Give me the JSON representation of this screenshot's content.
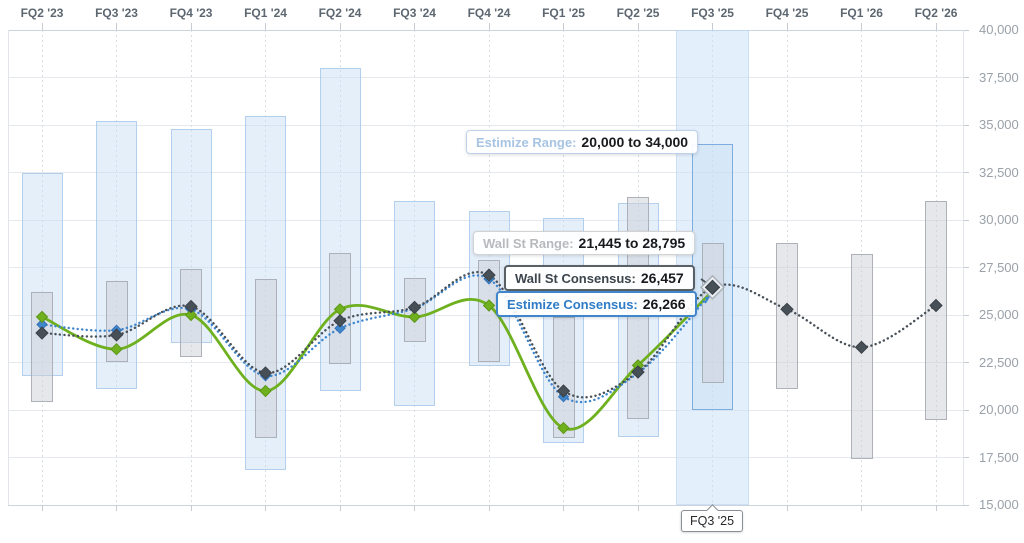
{
  "chart_data": {
    "type": "bar",
    "variant": "floating range bars with dotted consensus line overlays (estimates chart)",
    "title": "",
    "categories": [
      "FQ2 '23",
      "FQ3 '23",
      "FQ4 '23",
      "FQ1 '24",
      "FQ2 '24",
      "FQ3 '24",
      "FQ4 '24",
      "FQ1 '25",
      "FQ2 '25",
      "FQ3 '25",
      "FQ4 '25",
      "FQ1 '26",
      "FQ2 '26"
    ],
    "x_axis_position": "top",
    "y_axis": {
      "side": "right",
      "min": 15000,
      "max": 40000,
      "step": 2500,
      "tick_labels": [
        "40,000",
        "37,500",
        "35,000",
        "32,500",
        "30,000",
        "27,500",
        "25,000",
        "22,500",
        "20,000",
        "17,500",
        "15,000"
      ]
    },
    "grid": true,
    "legend": false,
    "selected": {
      "index": 9,
      "label": "FQ3 '25"
    },
    "range_series": [
      {
        "key": "estimize_range",
        "name": "Estimize Range",
        "fill": "#cfe1f5",
        "border": "#9dc2e8",
        "ranges": [
          [
            21800,
            32500
          ],
          [
            21100,
            35200
          ],
          [
            23500,
            34800
          ],
          [
            16850,
            35500
          ],
          [
            21000,
            38000
          ],
          [
            20200,
            31000
          ],
          [
            22300,
            30500
          ],
          [
            18250,
            30100
          ],
          [
            18600,
            30900
          ],
          [
            20000,
            34000
          ],
          null,
          null,
          null
        ]
      },
      {
        "key": "wallst_range",
        "name": "Wall St Range",
        "fill": "#e2e4e7",
        "border": "#a5aab0",
        "ranges": [
          [
            20400,
            26200
          ],
          [
            22500,
            26800
          ],
          [
            22800,
            27400
          ],
          [
            18500,
            26900
          ],
          [
            22400,
            28250
          ],
          [
            23600,
            26950
          ],
          [
            22500,
            27900
          ],
          [
            18500,
            24900
          ],
          [
            19500,
            31200
          ],
          [
            21445,
            28795
          ],
          [
            21100,
            28800
          ],
          [
            17400,
            28200
          ],
          [
            19500,
            31000
          ]
        ]
      }
    ],
    "line_series": [
      {
        "key": "green_line",
        "name": "green-solid-line",
        "color": "#6eb01e",
        "style": "solid",
        "values": [
          24900,
          23200,
          25000,
          21000,
          25300,
          24900,
          25500,
          19050,
          22350,
          26266,
          null,
          null,
          null
        ]
      },
      {
        "key": "estimize_consensus",
        "name": "Estimize Consensus",
        "color": "#3f86cd",
        "style": "dotted",
        "values": [
          24500,
          24200,
          25300,
          21800,
          24300,
          25350,
          26900,
          20700,
          21950,
          26266,
          null,
          null,
          null
        ]
      },
      {
        "key": "wallst_consensus",
        "name": "Wall St Consensus",
        "color": "#474f57",
        "style": "dotted",
        "values": [
          24050,
          23950,
          25450,
          21950,
          24700,
          25400,
          27100,
          21000,
          22000,
          26457,
          25300,
          23300,
          25500
        ]
      }
    ]
  },
  "overlays": {
    "estimize_range": {
      "label": "Estimize Range:",
      "value": "20,000 to 34,000"
    },
    "wallst_range": {
      "label": "Wall St Range:",
      "value": "21,445 to 28,795"
    },
    "wallst_consensus": {
      "label": "Wall St Consensus:",
      "value": "26,457"
    },
    "estimize_consensus": {
      "label": "Estimize Consensus:",
      "value": "26,266"
    },
    "selected_quarter": "FQ3 '25"
  }
}
